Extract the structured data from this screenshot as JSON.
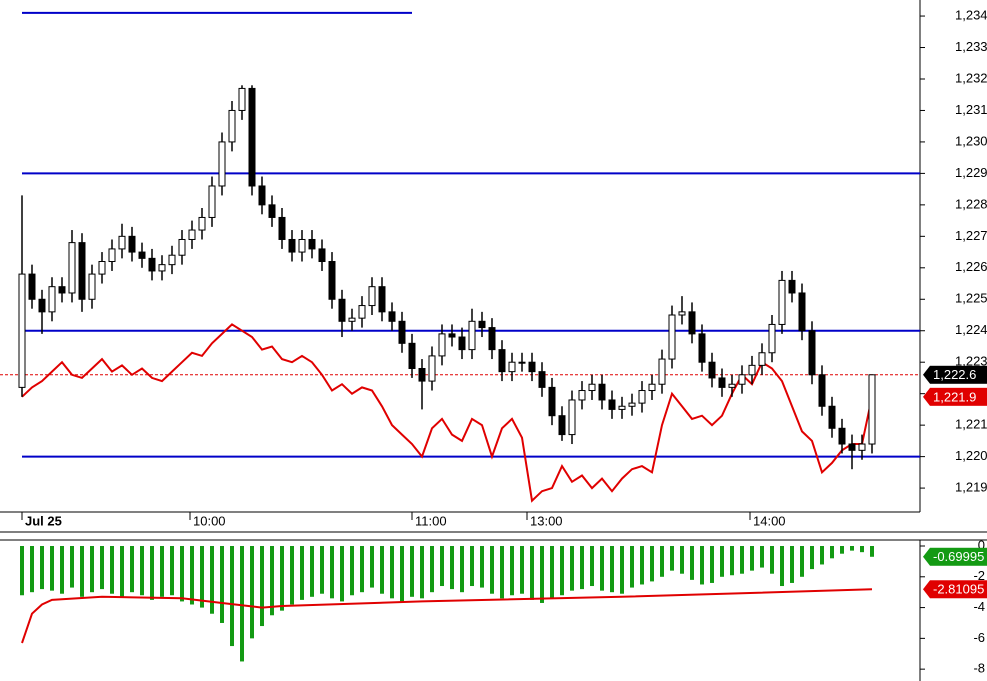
{
  "chart_data": [
    {
      "type": "candlestick",
      "xlim": [
        -2.2,
        89.8
      ],
      "ylim": [
        1218.24,
        1234.51
      ],
      "yticks": [
        {
          "value": 1219,
          "label": "1,219"
        },
        {
          "value": 1220,
          "label": "1,220"
        },
        {
          "value": 1221,
          "label": "1,221"
        },
        {
          "value": 1222,
          "label": "1,222"
        },
        {
          "value": 1223,
          "label": "1,223"
        },
        {
          "value": 1224,
          "label": "1,224"
        },
        {
          "value": 1225,
          "label": "1,225"
        },
        {
          "value": 1226,
          "label": "1,226"
        },
        {
          "value": 1227,
          "label": "1,227"
        },
        {
          "value": 1228,
          "label": "1,228"
        },
        {
          "value": 1229,
          "label": "1,229"
        },
        {
          "value": 1230,
          "label": "1,230"
        },
        {
          "value": 1231,
          "label": "1,231"
        },
        {
          "value": 1232,
          "label": "1,232"
        },
        {
          "value": 1233,
          "label": "1,233"
        },
        {
          "value": 1234,
          "label": "1,234"
        }
      ],
      "xticks": [
        {
          "value": 0,
          "label": "Jul 25"
        },
        {
          "value": 16.8,
          "label": "10:00"
        },
        {
          "value": 39,
          "label": "11:00"
        },
        {
          "value": 50.5,
          "label": "13:00"
        },
        {
          "value": 72.8,
          "label": "14:00"
        }
      ],
      "open": [
        1222.2,
        1225.8,
        1225.0,
        1224.6,
        1225.4,
        1225.2,
        1226.8,
        1225.0,
        1225.8,
        1226.2,
        1226.6,
        1227.0,
        1226.5,
        1226.3,
        1225.9,
        1226.1,
        1226.4,
        1226.9,
        1227.2,
        1227.6,
        1228.6,
        1230.0,
        1231.0,
        1231.7,
        1228.6,
        1228.0,
        1227.6,
        1226.9,
        1226.5,
        1226.9,
        1226.6,
        1226.2,
        1225.0,
        1224.3,
        1224.4,
        1224.8,
        1225.4,
        1224.6,
        1224.3,
        1223.6,
        1222.8,
        1222.4,
        1223.2,
        1223.9,
        1223.8,
        1223.4,
        1224.3,
        1224.1,
        1223.4,
        1222.7,
        1223.0,
        1223.0,
        1222.7,
        1222.2,
        1221.3,
        1220.7,
        1221.8,
        1222.1,
        1222.3,
        1221.8,
        1221.5,
        1221.6,
        1221.7,
        1222.1,
        1222.3,
        1223.1,
        1224.5,
        1224.6,
        1223.9,
        1223.0,
        1222.5,
        1222.2,
        1222.3,
        1222.6,
        1222.9,
        1223.3,
        1224.2,
        1225.6,
        1225.2,
        1224.0,
        1222.6,
        1221.6,
        1220.9,
        1220.4,
        1220.2,
        1220.4
      ],
      "high": [
        1228.3,
        1226.1,
        1225.3,
        1225.7,
        1225.7,
        1227.2,
        1227.1,
        1226.1,
        1226.5,
        1226.9,
        1227.4,
        1227.3,
        1226.8,
        1226.6,
        1226.4,
        1226.7,
        1227.2,
        1227.5,
        1227.9,
        1228.9,
        1230.3,
        1231.3,
        1231.8,
        1231.8,
        1228.9,
        1228.3,
        1227.9,
        1227.2,
        1227.2,
        1227.2,
        1226.9,
        1226.5,
        1225.3,
        1224.7,
        1225.1,
        1225.7,
        1225.7,
        1224.9,
        1224.6,
        1223.9,
        1223.1,
        1223.5,
        1224.2,
        1224.2,
        1224.1,
        1224.7,
        1224.6,
        1224.4,
        1223.7,
        1223.3,
        1223.3,
        1223.3,
        1223.0,
        1222.5,
        1221.6,
        1222.1,
        1222.4,
        1222.6,
        1222.6,
        1222.1,
        1221.9,
        1222.0,
        1222.4,
        1222.6,
        1223.4,
        1224.8,
        1225.1,
        1224.9,
        1224.2,
        1223.3,
        1222.8,
        1222.6,
        1222.9,
        1223.2,
        1223.6,
        1224.5,
        1225.9,
        1225.9,
        1225.5,
        1224.3,
        1222.9,
        1221.9,
        1221.2,
        1220.7,
        1220.7,
        1222.6
      ],
      "low": [
        1221.9,
        1224.7,
        1223.9,
        1224.3,
        1224.9,
        1224.9,
        1224.6,
        1224.7,
        1225.5,
        1225.9,
        1226.3,
        1226.2,
        1226.0,
        1225.6,
        1225.6,
        1225.8,
        1226.1,
        1226.6,
        1226.9,
        1227.3,
        1228.3,
        1229.7,
        1230.7,
        1228.3,
        1227.7,
        1227.3,
        1226.6,
        1226.2,
        1226.2,
        1226.3,
        1225.9,
        1224.7,
        1223.8,
        1224.0,
        1224.1,
        1224.5,
        1224.3,
        1224.0,
        1223.3,
        1222.5,
        1221.5,
        1222.1,
        1222.9,
        1223.5,
        1223.1,
        1223.1,
        1223.8,
        1223.1,
        1222.4,
        1222.4,
        1222.7,
        1222.4,
        1221.9,
        1221.0,
        1220.5,
        1220.4,
        1221.5,
        1221.8,
        1221.5,
        1221.2,
        1221.2,
        1221.3,
        1221.4,
        1221.8,
        1222.0,
        1222.8,
        1224.2,
        1223.6,
        1222.7,
        1222.2,
        1221.9,
        1221.9,
        1222.0,
        1222.3,
        1222.6,
        1223.0,
        1223.9,
        1224.9,
        1223.7,
        1222.3,
        1221.3,
        1220.6,
        1220.1,
        1219.6,
        1219.9,
        1220.1
      ],
      "close": [
        1225.8,
        1225.0,
        1224.6,
        1225.4,
        1225.2,
        1226.8,
        1225.0,
        1225.8,
        1226.2,
        1226.6,
        1227.0,
        1226.5,
        1226.3,
        1225.9,
        1226.1,
        1226.4,
        1226.9,
        1227.2,
        1227.6,
        1228.6,
        1230.0,
        1231.0,
        1231.7,
        1228.6,
        1228.0,
        1227.6,
        1226.9,
        1226.5,
        1226.9,
        1226.6,
        1226.2,
        1225.0,
        1224.3,
        1224.4,
        1224.8,
        1225.4,
        1224.6,
        1224.3,
        1223.6,
        1222.8,
        1222.4,
        1223.2,
        1223.9,
        1223.8,
        1223.4,
        1224.3,
        1224.1,
        1223.4,
        1222.7,
        1223.0,
        1223.0,
        1222.7,
        1222.2,
        1221.3,
        1220.7,
        1221.8,
        1222.1,
        1222.3,
        1221.8,
        1221.5,
        1221.6,
        1221.7,
        1222.1,
        1222.3,
        1223.1,
        1224.5,
        1224.6,
        1223.9,
        1223.0,
        1222.5,
        1222.2,
        1222.3,
        1222.6,
        1222.9,
        1223.3,
        1224.2,
        1225.6,
        1225.2,
        1224.0,
        1222.6,
        1221.6,
        1220.9,
        1220.4,
        1220.2,
        1220.4,
        1222.6
      ],
      "up_color": "#ffffff",
      "down_color": "#000000",
      "line": {
        "color": "#e00000",
        "values": [
          1221.9,
          1222.2,
          1222.4,
          1222.7,
          1223.0,
          1222.6,
          1222.5,
          1222.8,
          1223.1,
          1222.7,
          1222.9,
          1222.6,
          1222.8,
          1222.5,
          1222.4,
          1222.7,
          1223.0,
          1223.3,
          1223.2,
          1223.6,
          1223.9,
          1224.2,
          1224.0,
          1223.8,
          1223.4,
          1223.5,
          1223.1,
          1223.0,
          1223.2,
          1223.0,
          1222.6,
          1222.1,
          1222.3,
          1222.0,
          1222.2,
          1222.1,
          1221.6,
          1221.0,
          1220.7,
          1220.4,
          1220.0,
          1220.9,
          1221.2,
          1220.7,
          1220.5,
          1221.2,
          1221.0,
          1220.0,
          1220.9,
          1221.2,
          1220.6,
          1218.6,
          1218.9,
          1219.0,
          1219.7,
          1219.2,
          1219.4,
          1219.0,
          1219.3,
          1218.9,
          1219.3,
          1219.6,
          1219.7,
          1219.5,
          1221.0,
          1222.0,
          1221.6,
          1221.2,
          1221.3,
          1221.0,
          1221.3,
          1222.0,
          1222.6,
          1222.3,
          1223.0,
          1222.8,
          1222.4,
          1221.6,
          1220.8,
          1220.5,
          1219.5,
          1219.8,
          1220.2,
          1220.4,
          1220.4,
          1221.9
        ]
      },
      "level_color": "#0000c8",
      "levels": [
        {
          "value": 1234.1,
          "from": 0,
          "to": 39
        },
        {
          "value": 1229,
          "from": 0,
          "to": 89.8
        },
        {
          "value": 1224,
          "from": 0,
          "to": 89.8
        },
        {
          "value": 1220,
          "from": 0,
          "to": 89.8
        }
      ],
      "last_labels": [
        {
          "value": 1222.6,
          "label": "1,222.6",
          "color": "#000000"
        },
        {
          "value": 1221.9,
          "label": "1,221.9",
          "color": "#e00000"
        }
      ]
    },
    {
      "type": "bar",
      "xlim": [
        -2.2,
        89.8
      ],
      "ylim": [
        -8.77,
        0.39
      ],
      "yticks": [
        0,
        -2,
        -4,
        -6,
        -8
      ],
      "color": "#139a13",
      "values": [
        -3.2,
        -3.0,
        -2.8,
        -2.9,
        -3.1,
        -2.7,
        -3.3,
        -3.0,
        -2.8,
        -3.1,
        -3.3,
        -3.0,
        -3.2,
        -3.5,
        -3.3,
        -3.2,
        -3.6,
        -3.8,
        -4.0,
        -4.4,
        -5.0,
        -6.5,
        -7.5,
        -6.0,
        -5.2,
        -4.5,
        -4.2,
        -3.8,
        -3.5,
        -3.3,
        -3.1,
        -3.4,
        -3.6,
        -3.2,
        -3.0,
        -2.7,
        -3.1,
        -3.4,
        -3.6,
        -3.3,
        -3.4,
        -3.0,
        -2.6,
        -2.8,
        -3.0,
        -2.6,
        -2.7,
        -3.1,
        -3.4,
        -3.2,
        -3.1,
        -3.5,
        -3.7,
        -3.4,
        -3.2,
        -2.9,
        -2.8,
        -2.6,
        -2.9,
        -3.0,
        -3.1,
        -2.7,
        -2.5,
        -2.3,
        -2.0,
        -1.6,
        -1.8,
        -2.2,
        -2.5,
        -2.4,
        -2.0,
        -1.9,
        -1.8,
        -1.6,
        -1.4,
        -1.8,
        -2.6,
        -2.4,
        -2.0,
        -1.5,
        -1.2,
        -0.8,
        -0.5,
        -0.3,
        -0.4,
        -0.69995
      ],
      "line": {
        "color": "#e00000",
        "x": [
          0,
          1,
          2,
          3,
          8,
          16,
          20,
          24,
          26,
          40,
          60,
          85
        ],
        "values": [
          -6.3,
          -4.4,
          -3.8,
          -3.5,
          -3.3,
          -3.4,
          -3.7,
          -4.0,
          -3.9,
          -3.6,
          -3.3,
          -2.81095
        ]
      },
      "last_labels": [
        {
          "value": -0.69995,
          "label": "-0.69995",
          "color": "#139a13"
        },
        {
          "value": -2.81095,
          "label": "-2.81095",
          "color": "#e00000"
        }
      ]
    }
  ]
}
